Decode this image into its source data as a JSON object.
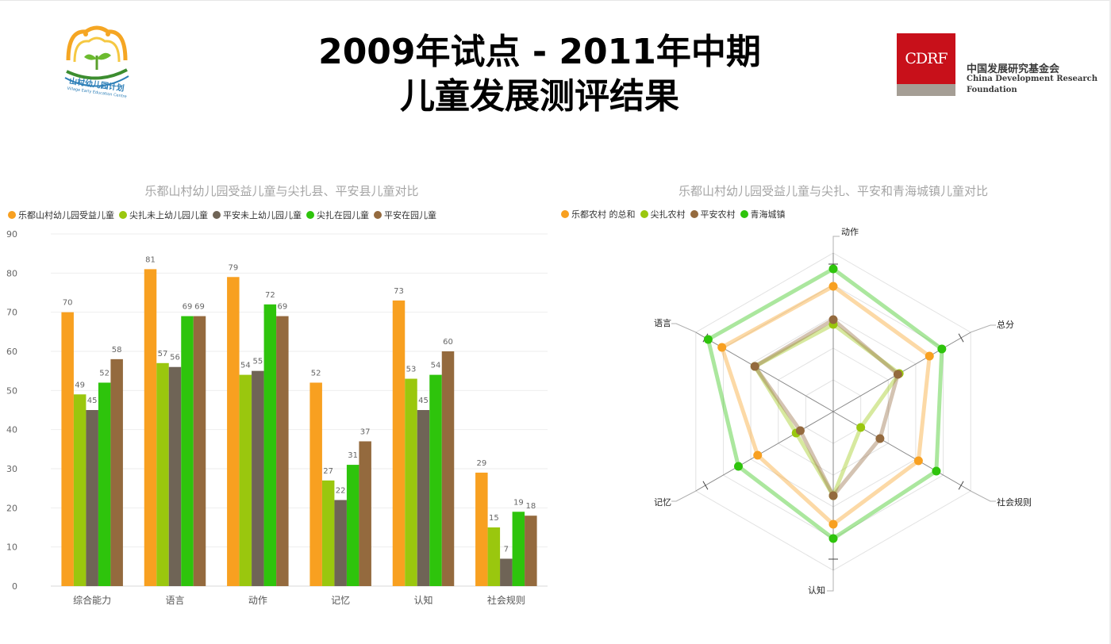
{
  "header": {
    "title_line1": "2009年试点 - 2011年中期",
    "title_line2": "儿童发展测评结果"
  },
  "logos": {
    "left_text": "山村幼儿园计划",
    "left_subtext": "Village Early Education Centre",
    "right_box": "CDRF",
    "right_cn": "中国发展研究基金会",
    "right_en1": "China Development Research",
    "right_en2": "Foundation"
  },
  "chart_data": [
    {
      "type": "bar",
      "title": "乐都山村幼儿园受益儿童与尖扎县、平安县儿童对比",
      "categories": [
        "综合能力",
        "语言",
        "动作",
        "记忆",
        "认知",
        "社会规则"
      ],
      "ylim": [
        0,
        90
      ],
      "yticks": [
        0,
        10,
        20,
        30,
        40,
        50,
        60,
        70,
        80,
        90
      ],
      "grid": true,
      "legend_position": "top-left",
      "series": [
        {
          "name": "乐都山村幼儿园受益儿童",
          "color": "#f8a020",
          "values": [
            70,
            81,
            79,
            52,
            73,
            29
          ]
        },
        {
          "name": "尖扎未上幼儿园儿童",
          "color": "#9ac70e",
          "values": [
            49,
            57,
            54,
            27,
            53,
            15
          ]
        },
        {
          "name": "平安未上幼儿园儿童",
          "color": "#6f6456",
          "values": [
            45,
            56,
            55,
            22,
            45,
            7
          ]
        },
        {
          "name": "尖扎在园儿童",
          "color": "#2ec40c",
          "values": [
            52,
            69,
            72,
            31,
            54,
            19
          ]
        },
        {
          "name": "平安在园儿童",
          "color": "#946a3e",
          "values": [
            58,
            69,
            69,
            37,
            60,
            18
          ]
        }
      ]
    },
    {
      "type": "radar",
      "title": "乐都山村幼儿园受益儿童与尖扎、平安和青海城镇儿童对比",
      "axes": [
        "动作",
        "总分",
        "社会规则",
        "认知",
        "记忆",
        "语言"
      ],
      "rmax": 100,
      "legend_position": "top-left",
      "series": [
        {
          "name": "乐都农村 的总和",
          "color": "#f8a020",
          "values": [
            79,
            70,
            62,
            71,
            55,
            81
          ]
        },
        {
          "name": "尖扎农村",
          "color": "#9ac70e",
          "values": [
            55,
            48,
            20,
            53,
            27,
            57
          ]
        },
        {
          "name": "平安农村",
          "color": "#946a3e",
          "values": [
            58,
            47,
            34,
            53,
            24,
            57
          ]
        },
        {
          "name": "青海城镇",
          "color": "#2ec40c",
          "values": [
            90,
            79,
            75,
            80,
            69,
            91
          ]
        }
      ]
    }
  ]
}
